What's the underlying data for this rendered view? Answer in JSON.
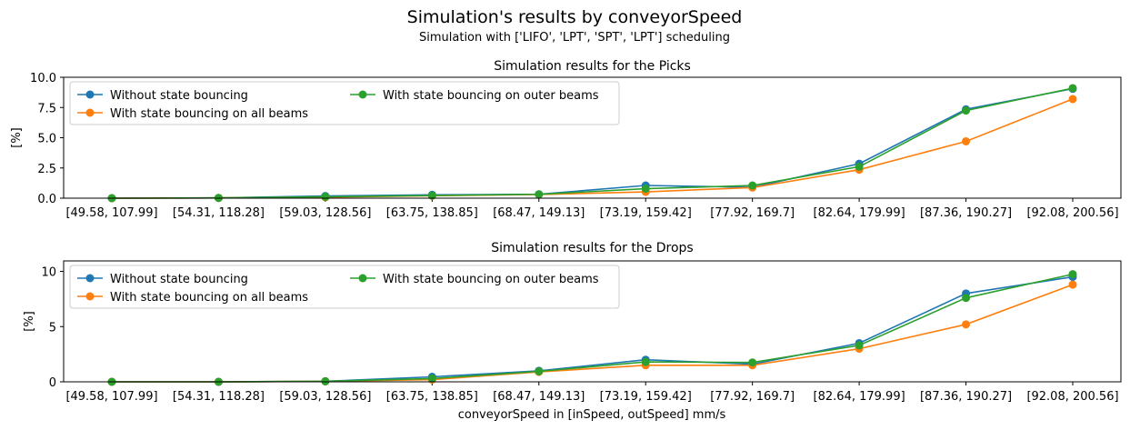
{
  "figure": {
    "title": "Simulation's results by conveyorSpeed",
    "subtitle": "Simulation with ['LIFO', 'LPT', 'SPT', 'LPT'] scheduling",
    "xlabel": "conveyorSpeed in [inSpeed, outSpeed] mm/s"
  },
  "chart_data": [
    {
      "type": "line",
      "title": "Simulation results for the Picks",
      "xlabel": "",
      "ylabel": "[%]",
      "ylim": [
        0,
        10
      ],
      "yticks": [
        "0.0",
        "2.5",
        "5.0",
        "7.5",
        "10.0"
      ],
      "grid": false,
      "legend_position": "top-left",
      "categories": [
        "[49.58, 107.99]",
        "[54.31, 118.28]",
        "[59.03, 128.56]",
        "[63.75, 138.85]",
        "[68.47, 149.13]",
        "[73.19, 159.42]",
        "[77.92, 169.7]",
        "[82.64, 179.99]",
        "[87.36, 190.27]",
        "[92.08, 200.56]"
      ],
      "series": [
        {
          "name": "Without state bouncing",
          "color": "#1f77b4",
          "values": [
            0.0,
            0.02,
            0.18,
            0.28,
            0.32,
            1.05,
            0.9,
            2.85,
            7.35,
            9.05
          ]
        },
        {
          "name": "With state bouncing on all beams",
          "color": "#ff7f0e",
          "values": [
            0.0,
            0.02,
            0.08,
            0.2,
            0.3,
            0.52,
            0.88,
            2.35,
            4.7,
            8.2
          ]
        },
        {
          "name": "With state bouncing on outer beams",
          "color": "#2ca02c",
          "values": [
            0.0,
            0.02,
            0.12,
            0.22,
            0.32,
            0.78,
            1.05,
            2.6,
            7.25,
            9.1
          ]
        }
      ]
    },
    {
      "type": "line",
      "title": "Simulation results for the Drops",
      "xlabel": "conveyorSpeed in [inSpeed, outSpeed] mm/s",
      "ylabel": "[%]",
      "ylim": [
        0,
        10.95
      ],
      "yticks": [
        "0",
        "5",
        "10"
      ],
      "grid": false,
      "legend_position": "top-left",
      "categories": [
        "[49.58, 107.99]",
        "[54.31, 118.28]",
        "[59.03, 128.56]",
        "[63.75, 138.85]",
        "[68.47, 149.13]",
        "[73.19, 159.42]",
        "[77.92, 169.7]",
        "[82.64, 179.99]",
        "[87.36, 190.27]",
        "[92.08, 200.56]"
      ],
      "series": [
        {
          "name": "Without state bouncing",
          "color": "#1f77b4",
          "values": [
            0.0,
            0.0,
            0.05,
            0.45,
            1.0,
            2.0,
            1.6,
            3.5,
            8.0,
            9.5
          ]
        },
        {
          "name": "With state bouncing on all beams",
          "color": "#ff7f0e",
          "values": [
            0.0,
            0.0,
            0.05,
            0.2,
            0.9,
            1.5,
            1.5,
            3.0,
            5.2,
            8.8
          ]
        },
        {
          "name": "With state bouncing on outer beams",
          "color": "#2ca02c",
          "values": [
            0.0,
            0.0,
            0.05,
            0.3,
            0.95,
            1.8,
            1.75,
            3.3,
            7.6,
            9.75
          ]
        }
      ]
    }
  ]
}
